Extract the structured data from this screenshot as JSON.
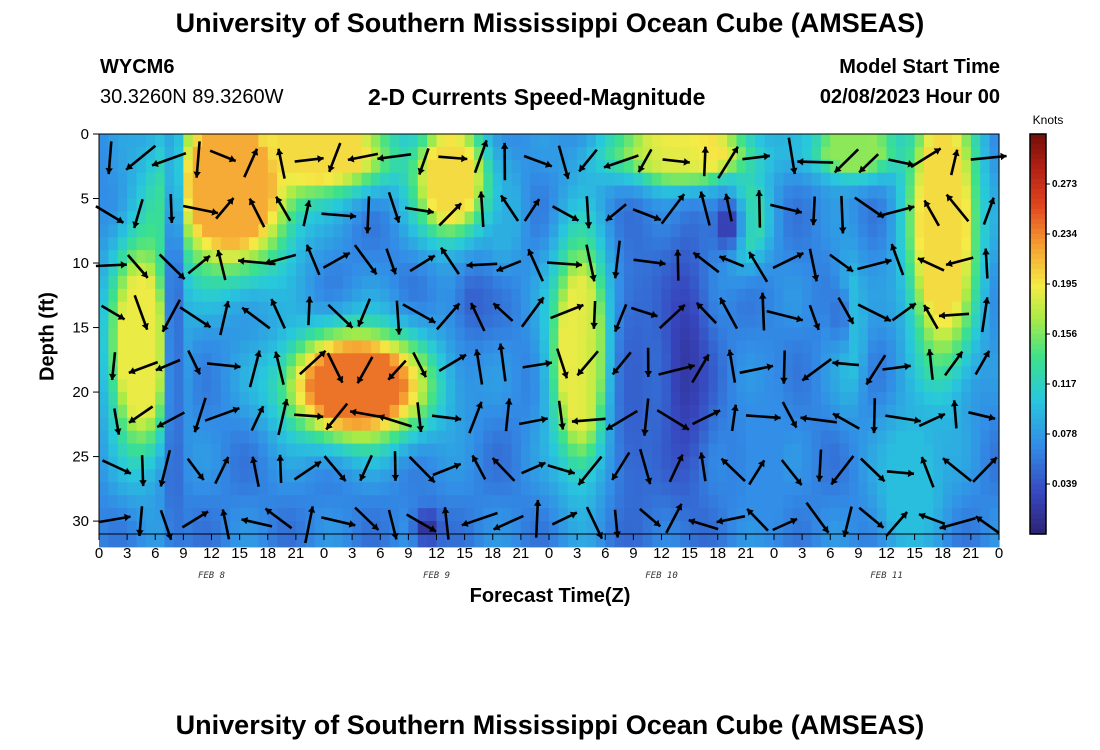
{
  "title_top": "University of Southern Mississippi Ocean Cube (AMSEAS)",
  "title_bottom": "University of Southern Mississippi Ocean Cube (AMSEAS)",
  "station": {
    "id": "WYCM6",
    "location": "30.3260N  89.3260W"
  },
  "chart_title": "2-D Currents Speed-Magnitude",
  "model_start": {
    "label": "Model Start Time",
    "value": "02/08/2023 Hour 00"
  },
  "chart_data": {
    "type": "heatmap",
    "title": "2-D Currents Speed-Magnitude",
    "xlabel": "Forecast Time(Z)",
    "ylabel": "Depth (ft)",
    "x_ticks": [
      "0",
      "3",
      "6",
      "9",
      "12",
      "15",
      "18",
      "21",
      "0",
      "3",
      "6",
      "9",
      "12",
      "15",
      "18",
      "21",
      "0",
      "3",
      "6",
      "9",
      "12",
      "15",
      "18",
      "21",
      "0",
      "3",
      "6",
      "9",
      "12",
      "15",
      "18",
      "21",
      "0"
    ],
    "day_labels": [
      {
        "label": "FEB 8",
        "hour": 12
      },
      {
        "label": "FEB 9",
        "hour": 36
      },
      {
        "label": "FEB 10",
        "hour": 60
      },
      {
        "label": "FEB 11",
        "hour": 84
      }
    ],
    "x_range_hours": [
      0,
      96
    ],
    "y_ticks": [
      "0",
      "5",
      "10",
      "15",
      "20",
      "25",
      "30"
    ],
    "y_range_ft": [
      0,
      31
    ],
    "y_inverted": true,
    "colorbar": {
      "unit": "Knots",
      "ticks": [
        "0.273",
        "0.234",
        "0.195",
        "0.156",
        "0.117",
        "0.078",
        "0.039"
      ],
      "range": [
        0.0,
        0.312
      ]
    },
    "blobs": [
      {
        "x": 4.5,
        "y": 16.5,
        "sx": 2.3,
        "sy": 5.5,
        "v": 0.19
      },
      {
        "x": 1.0,
        "y": 14.0,
        "sx": 1.4,
        "sy": 9.0,
        "v": 0.06
      },
      {
        "x": 14.0,
        "y": 4.0,
        "sx": 4.5,
        "sy": 4.5,
        "v": 0.22
      },
      {
        "x": 23.5,
        "y": 1.5,
        "sx": 5.0,
        "sy": 2.0,
        "v": 0.2
      },
      {
        "x": 13.0,
        "y": 12.0,
        "sx": 1.5,
        "sy": 3.5,
        "v": 0.07
      },
      {
        "x": 27.5,
        "y": 19.5,
        "sx": 5.0,
        "sy": 2.8,
        "v": 0.24
      },
      {
        "x": 37.5,
        "y": 3.5,
        "sx": 2.6,
        "sy": 3.0,
        "v": 0.2
      },
      {
        "x": 43.0,
        "y": 6.0,
        "sx": 1.5,
        "sy": 3.0,
        "v": 0.09
      },
      {
        "x": 51.5,
        "y": 17.0,
        "sx": 2.2,
        "sy": 6.0,
        "v": 0.19
      },
      {
        "x": 62.0,
        "y": 1.5,
        "sx": 5.0,
        "sy": 1.7,
        "v": 0.2
      },
      {
        "x": 68.5,
        "y": 6.5,
        "sx": 2.0,
        "sy": 2.5,
        "v": 0.13
      },
      {
        "x": 80.5,
        "y": 1.2,
        "sx": 3.0,
        "sy": 1.5,
        "v": 0.16
      },
      {
        "x": 90.0,
        "y": 7.0,
        "sx": 2.5,
        "sy": 7.5,
        "v": 0.2
      },
      {
        "x": 80.0,
        "y": 15.0,
        "sx": 1.2,
        "sy": 4.0,
        "v": 0.1
      },
      {
        "x": 86.5,
        "y": 27.0,
        "sx": 2.5,
        "sy": 4.0,
        "v": 0.1
      },
      {
        "x": 71.0,
        "y": 25.0,
        "sx": 2.0,
        "sy": 6.0,
        "v": 0.07
      }
    ],
    "lows": [
      {
        "x": 62.5,
        "y": 18.0,
        "sx": 2.0,
        "sy": 7.0,
        "v": 0.02
      },
      {
        "x": 67.0,
        "y": 7.0,
        "sx": 1.2,
        "sy": 1.8,
        "v": 0.015
      },
      {
        "x": 35.0,
        "y": 30.5,
        "sx": 1.0,
        "sy": 1.0,
        "v": 0.01
      },
      {
        "x": 8.0,
        "y": 15.0,
        "sx": 0.7,
        "sy": 14.0,
        "v": 0.04
      },
      {
        "x": 57.0,
        "y": 20.0,
        "sx": 2.0,
        "sy": 10.0,
        "v": 0.045
      },
      {
        "x": 40.0,
        "y": 13.0,
        "sx": 1.5,
        "sy": 2.0,
        "v": 0.045
      },
      {
        "x": 79.0,
        "y": 14.0,
        "sx": 0.6,
        "sy": 2.0,
        "v": 0.045
      }
    ]
  }
}
